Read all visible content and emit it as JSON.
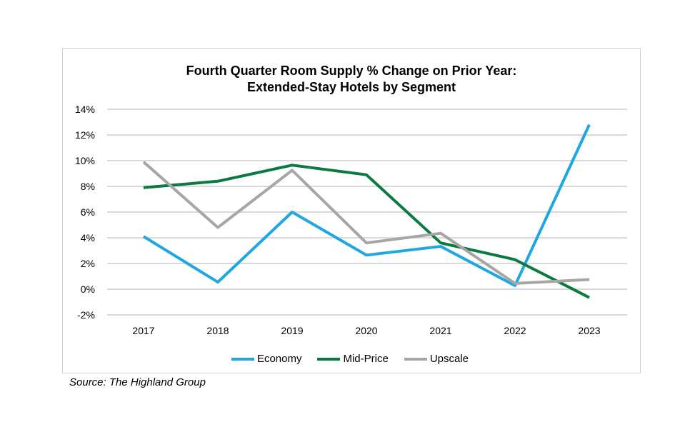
{
  "chart_data": {
    "type": "line",
    "title": "Fourth Quarter Room Supply % Change on Prior Year:",
    "subtitle": "Extended-Stay Hotels by Segment",
    "x": [
      "2017",
      "2018",
      "2019",
      "2020",
      "2021",
      "2022",
      "2023"
    ],
    "ylim": [
      -2,
      14
    ],
    "yticks": [
      -2,
      0,
      2,
      4,
      6,
      8,
      10,
      12,
      14
    ],
    "ytick_labels": [
      "-2%",
      "0%",
      "2%",
      "4%",
      "6%",
      "8%",
      "10%",
      "12%",
      "14%"
    ],
    "grid": true,
    "legend_position": "bottom",
    "series": [
      {
        "name": "Economy",
        "color": "#1ea7e1",
        "values": [
          4.1,
          0.55,
          6.0,
          2.65,
          3.33,
          0.28,
          12.8
        ]
      },
      {
        "name": "Mid-Price",
        "color": "#0b7a3e",
        "values": [
          7.9,
          8.4,
          9.65,
          8.9,
          3.6,
          2.3,
          -0.65
        ]
      },
      {
        "name": "Upscale",
        "color": "#a6a6a6",
        "values": [
          9.9,
          4.8,
          9.25,
          3.6,
          4.35,
          0.45,
          0.75
        ]
      }
    ],
    "source": "Source: The Highland Group"
  }
}
